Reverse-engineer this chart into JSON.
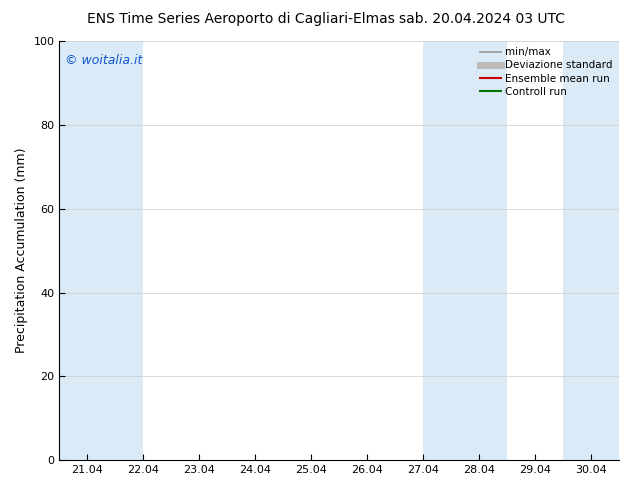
{
  "title_left": "ENS Time Series Aeroporto di Cagliari-Elmas",
  "title_right": "sab. 20.04.2024 03 UTC",
  "ylabel": "Precipitation Accumulation (mm)",
  "ylim": [
    0,
    100
  ],
  "yticks": [
    0,
    20,
    40,
    60,
    80,
    100
  ],
  "xlim": [
    20.5,
    30.5
  ],
  "xticks": [
    21.0,
    22.0,
    23.0,
    24.0,
    25.0,
    26.0,
    27.0,
    28.0,
    29.0,
    30.0
  ],
  "xticklabels": [
    "21.04",
    "22.04",
    "23.04",
    "24.04",
    "25.04",
    "26.04",
    "27.04",
    "28.04",
    "29.04",
    "30.04"
  ],
  "shaded_bands": [
    [
      20.5,
      21.0
    ],
    [
      21.0,
      22.0
    ],
    [
      27.0,
      27.5
    ],
    [
      27.5,
      28.5
    ],
    [
      29.5,
      30.5
    ]
  ],
  "shade_color": "#daeaf7",
  "copyright_text": "© woitalia.it",
  "copyright_color": "#1155cc",
  "legend_items": [
    {
      "label": "min/max",
      "color": "#999999",
      "lw": 1.2,
      "type": "line"
    },
    {
      "label": "Deviazione standard",
      "color": "#bbbbbb",
      "lw": 5,
      "type": "line"
    },
    {
      "label": "Ensemble mean run",
      "color": "#cc0000",
      "lw": 1.5,
      "type": "line"
    },
    {
      "label": "Controll run",
      "color": "#007700",
      "lw": 1.5,
      "type": "line"
    }
  ],
  "background_color": "#ffffff",
  "title_fontsize": 10,
  "axis_label_fontsize": 9,
  "tick_fontsize": 8,
  "legend_fontsize": 7.5,
  "copyright_fontsize": 9
}
